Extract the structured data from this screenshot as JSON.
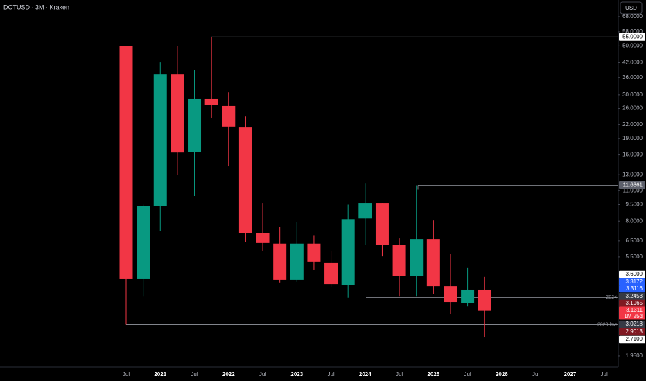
{
  "header": {
    "symbol": "DOTUSD · 3M · Kraken",
    "currency": "USD"
  },
  "chart_data": {
    "type": "candlestick",
    "log_scale": true,
    "up_color": "#089981",
    "down_color": "#f23645",
    "categories": [
      "Jul",
      null,
      "2021",
      null,
      "Jul",
      null,
      "2022",
      null,
      "Jul",
      null,
      "2023",
      null,
      "Jul",
      null,
      "2024",
      null,
      "Jul",
      null,
      "2025",
      null,
      "Jul",
      null,
      "2026",
      null,
      "Jul",
      null,
      "2027",
      null,
      "Jul"
    ],
    "open": [
      49.8,
      4.36,
      9.33,
      37.2,
      16.5,
      28.7,
      26.7,
      21.3,
      7.04,
      6.32,
      4.33,
      6.32,
      5.19,
      4.11,
      8.23,
      9.67,
      6.22,
      4.49,
      6.63,
      4.05,
      3.4,
      3.91,
      null,
      null,
      null,
      null,
      null,
      null,
      null
    ],
    "high": [
      49.8,
      9.5,
      42.1,
      49.8,
      38.9,
      55,
      30.8,
      23.9,
      9.67,
      7.51,
      7.9,
      6.91,
      5.87,
      9.5,
      11.92,
      9.67,
      6.68,
      11.6361,
      8.06,
      5.66,
      4.9,
      4.46,
      null,
      null,
      null,
      null,
      null,
      null,
      null
    ],
    "low": [
      2.71,
      3.63,
      7.24,
      13.0,
      10.4,
      23.6,
      14.2,
      6.4,
      5.87,
      4.21,
      4.24,
      4.79,
      4.0,
      3.59,
      6.26,
      5.53,
      3.63,
      3.63,
      3.74,
      3.03,
      3.28,
      2.37,
      null,
      null,
      null,
      null,
      null,
      null,
      null
    ],
    "close": [
      4.36,
      9.39,
      37.2,
      16.4,
      28.7,
      26.9,
      21.5,
      7.08,
      6.36,
      4.33,
      6.32,
      5.23,
      4.14,
      8.17,
      9.67,
      6.26,
      4.49,
      6.63,
      4.05,
      3.43,
      3.91,
      3.1311,
      null,
      null,
      null,
      null,
      null,
      null,
      null
    ],
    "ylim": [
      1.736,
      80.9
    ],
    "yticks": [
      {
        "value": 68,
        "label": "68.0000"
      },
      {
        "value": 58,
        "label": "58.0000"
      },
      {
        "value": 50,
        "label": "50.0000"
      },
      {
        "value": 42,
        "label": "42.0000"
      },
      {
        "value": 36,
        "label": "36.0000"
      },
      {
        "value": 30,
        "label": "30.0000"
      },
      {
        "value": 26,
        "label": "26.0000"
      },
      {
        "value": 22,
        "label": "22.0000"
      },
      {
        "value": 19,
        "label": "19.0000"
      },
      {
        "value": 16,
        "label": "16.0000"
      },
      {
        "value": 13,
        "label": "13.0000"
      },
      {
        "value": 11,
        "label": "11.0000"
      },
      {
        "value": 9.5,
        "label": "9.5000"
      },
      {
        "value": 8,
        "label": "8.0000"
      },
      {
        "value": 6.5,
        "label": "6.5000"
      },
      {
        "value": 5.5,
        "label": "5.5000"
      },
      {
        "value": 1.95,
        "label": "1.9500"
      }
    ],
    "levels": [
      {
        "value": 55,
        "label": "55.0000",
        "bg": "#ffffff",
        "fg": "#000000"
      },
      {
        "value": 11.6361,
        "label": "11.6361",
        "bg": "#5d606b",
        "fg": "#ffffff"
      },
      {
        "value": 3.6,
        "label": "3.6000",
        "bg": "#ffffff",
        "fg": "#000000",
        "note": "2024"
      },
      {
        "value": 2.71,
        "label": "2.7100",
        "bg": "#ffffff",
        "fg": "#000000",
        "note": "2020 low"
      }
    ],
    "scale_labels": [
      {
        "value": 3.6,
        "label": "3.6000",
        "bg": "#ffffff",
        "fg": "#000000"
      },
      {
        "value": 3.3172,
        "label": "3.3172",
        "bg": "#2962ff",
        "fg": "#ffffff"
      },
      {
        "value": 3.3116,
        "label": "3.3116",
        "bg": "#2962ff",
        "fg": "#ffffff"
      },
      {
        "value": 3.2453,
        "label": "3.2453",
        "bg": "#363a45",
        "fg": "#ffffff"
      },
      {
        "value": 3.1965,
        "label": "3.1965",
        "bg": "#801922",
        "fg": "#ffffff"
      },
      {
        "value": 3.1311,
        "label": "3.1311",
        "bg": "#f23645",
        "fg": "#ffffff",
        "sub": "1M 25d"
      },
      {
        "value": 3.0218,
        "label": "3.0218",
        "bg": "#363a45",
        "fg": "#ffffff"
      },
      {
        "value": 2.9013,
        "label": "2.9013",
        "bg": "#801922",
        "fg": "#ffffff"
      },
      {
        "value": 2.71,
        "label": "2.7100",
        "bg": "#ffffff",
        "fg": "#000000"
      }
    ]
  }
}
